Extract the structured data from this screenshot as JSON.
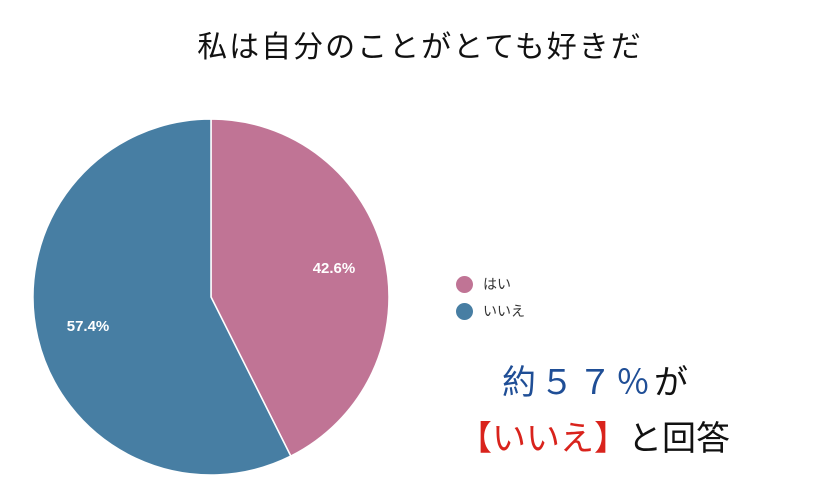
{
  "chart_data": {
    "type": "pie",
    "title": "私は自分のことがとても好きだ",
    "categories": [
      "はい",
      "いいえ"
    ],
    "values": [
      42.6,
      57.4
    ],
    "value_labels": [
      "42.6%",
      "57.4%"
    ],
    "colors": [
      "#c07495",
      "#477ea3"
    ],
    "legend_position": "right"
  },
  "callout": {
    "line1_blue": "約５７％",
    "line1_black": "が",
    "line2_red": "【いいえ】",
    "line2_black": "と回答"
  },
  "colors": {
    "callout_blue": "#1f4e96",
    "callout_red": "#d9231c"
  }
}
